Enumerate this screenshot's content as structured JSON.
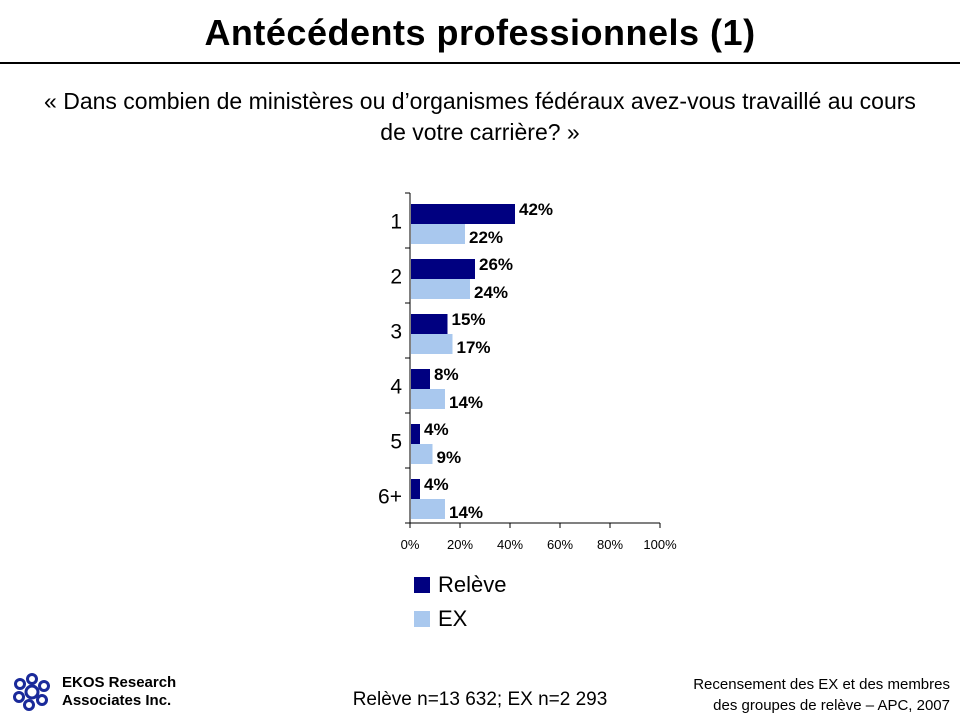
{
  "title": "Antécédents professionnels (1)",
  "question": "« Dans combien de ministères ou d’organismes fédéraux avez-vous travaillé au cours de votre carrière? »",
  "colors": {
    "releve": "#000080",
    "ex": "#a9c8ee"
  },
  "chart_data": {
    "type": "bar",
    "orientation": "horizontal",
    "categories": [
      "1",
      "2",
      "3",
      "4",
      "5",
      "6+"
    ],
    "series": [
      {
        "name": "Relève",
        "values": [
          42,
          26,
          15,
          8,
          4,
          4
        ],
        "labels": [
          "42%",
          "26%",
          "15%",
          "8%",
          "4%",
          "4%"
        ]
      },
      {
        "name": "EX",
        "values": [
          22,
          24,
          17,
          14,
          9,
          14
        ],
        "labels": [
          "22%",
          "24%",
          "17%",
          "14%",
          "9%",
          "14%"
        ]
      }
    ],
    "xlim": [
      0,
      100
    ],
    "xticks": [
      "0%",
      "20%",
      "40%",
      "60%",
      "80%",
      "100%"
    ],
    "grid": false,
    "legend_position": "bottom"
  },
  "footer": {
    "company_line1": "EKOS Research",
    "company_line2": "Associates Inc.",
    "sample": "Relève n=13 632; EX n=2 293",
    "source_line1": "Recensement des EX et des membres",
    "source_line2": "des groupes de relève – APC, 2007"
  }
}
